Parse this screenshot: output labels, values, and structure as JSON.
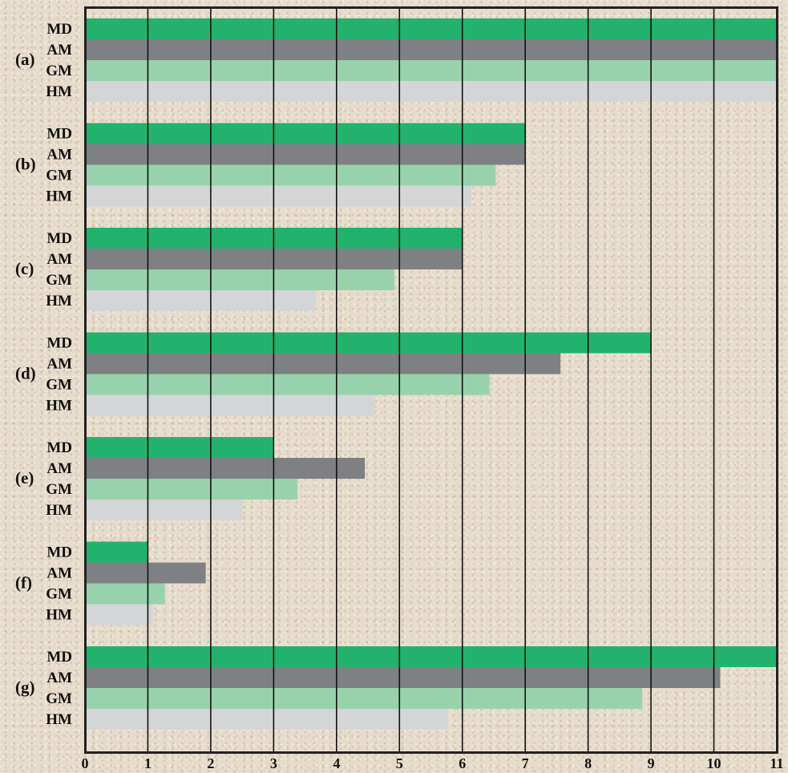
{
  "chart_data": {
    "type": "bar",
    "orientation": "horizontal",
    "title": "",
    "xlabel": "",
    "ylabel": "",
    "xlim": [
      0,
      11
    ],
    "grid": true,
    "x_ticks": [
      "0",
      "1",
      "2",
      "3",
      "4",
      "5",
      "6",
      "7",
      "8",
      "9",
      "10",
      "11"
    ],
    "series_labels": [
      "MD",
      "AM",
      "GM",
      "HM"
    ],
    "colors": {
      "MD": "#22b26c",
      "AM": "#7f8084",
      "GM": "#97d2ad",
      "HM": "#d4d5d7"
    },
    "groups": [
      {
        "label": "(a)",
        "values": {
          "MD": 11,
          "AM": 11,
          "GM": 11,
          "HM": 11
        }
      },
      {
        "label": "(b)",
        "values": {
          "MD": 7,
          "AM": 7,
          "GM": 6.53,
          "HM": 6.14
        }
      },
      {
        "label": "(c)",
        "values": {
          "MD": 6,
          "AM": 6,
          "GM": 4.92,
          "HM": 3.67
        }
      },
      {
        "label": "(d)",
        "values": {
          "MD": 9,
          "AM": 7.56,
          "GM": 6.43,
          "HM": 4.6
        }
      },
      {
        "label": "(e)",
        "values": {
          "MD": 3,
          "AM": 4.45,
          "GM": 3.38,
          "HM": 2.5
        }
      },
      {
        "label": "(f)",
        "values": {
          "MD": 1,
          "AM": 1.92,
          "GM": 1.27,
          "HM": 1.08
        }
      },
      {
        "label": "(g)",
        "values": {
          "MD": 11,
          "AM": 10.1,
          "GM": 8.86,
          "HM": 5.77
        }
      }
    ]
  }
}
